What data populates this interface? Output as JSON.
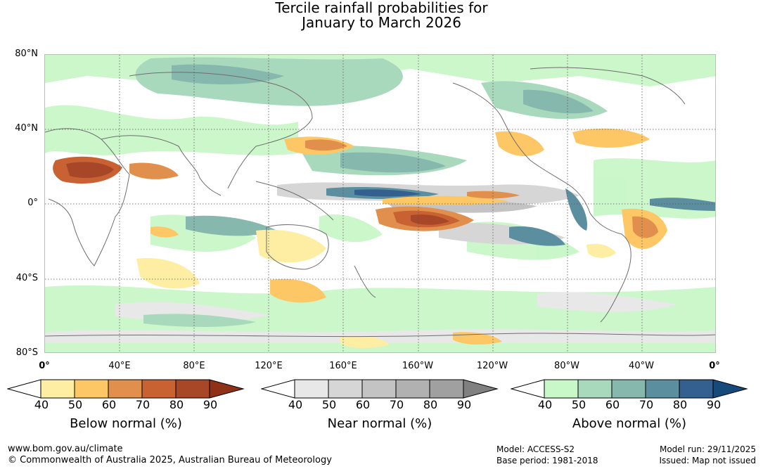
{
  "title": {
    "line1": "Tercile rainfall probabilities for",
    "line2": "January to March 2026"
  },
  "map": {
    "lat_labels": [
      "80°N",
      "40°N",
      "0°",
      "40°S",
      "80°S"
    ],
    "lon_labels": [
      "0°",
      "40°E",
      "80°E",
      "120°E",
      "160°E",
      "160°W",
      "120°W",
      "80°W",
      "40°W",
      "0°"
    ]
  },
  "legends": [
    {
      "id": "below",
      "label": "Below normal (%)",
      "ticks": [
        "40",
        "50",
        "60",
        "70",
        "80",
        "90"
      ],
      "colors": [
        "#ffffff",
        "#fdeea4",
        "#fdc765",
        "#e0904c",
        "#c96233",
        "#a84628",
        "#8f3116"
      ]
    },
    {
      "id": "near",
      "label": "Near normal (%)",
      "ticks": [
        "40",
        "50",
        "60",
        "70",
        "80",
        "90"
      ],
      "colors": [
        "#ffffff",
        "#e8e8e8",
        "#d6d6d6",
        "#c3c3c3",
        "#b1b1b1",
        "#a0a0a0",
        "#808080"
      ]
    },
    {
      "id": "above",
      "label": "Above normal (%)",
      "ticks": [
        "40",
        "50",
        "60",
        "70",
        "80",
        "90"
      ],
      "colors": [
        "#ffffff",
        "#c8f7c8",
        "#a9d9bd",
        "#87b8ae",
        "#5b8fa0",
        "#33608e",
        "#174a7c"
      ]
    }
  ],
  "footer": {
    "url": "www.bom.gov.au/climate",
    "copyright": "© Commonwealth of Australia 2025, Australian Bureau of Meteorology",
    "model": "Model: ACCESS-S2",
    "base_period": "Base period: 1981-2018",
    "model_run": "Model run: 29/11/2025",
    "issued": "Issued: Map not issued"
  }
}
